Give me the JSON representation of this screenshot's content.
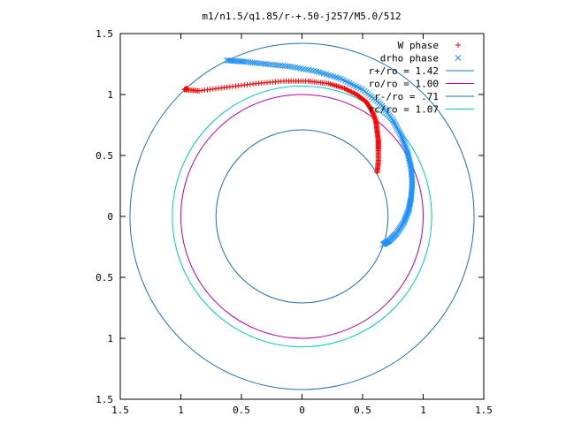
{
  "chart_data": {
    "type": "scatter",
    "title": "m1/n1.5/q1.85/r-+.50-j257/M5.0/512",
    "xlabel": "",
    "ylabel": "",
    "xlim": [
      -1.5,
      1.5
    ],
    "ylim": [
      -1.5,
      1.5
    ],
    "x_ticks": [
      -1.5,
      -1,
      -0.5,
      0,
      0.5,
      1,
      1.5
    ],
    "y_ticks": [
      -1.5,
      -1,
      -0.5,
      0,
      0.5,
      1,
      1.5
    ],
    "x_tick_labels": [
      "1.5",
      "1",
      "0.5",
      "0",
      "0.5",
      "1",
      "1.5"
    ],
    "y_tick_labels": [
      "1.5",
      "1",
      "0.5",
      "0",
      "0.5",
      "1",
      "1.5"
    ],
    "grid": false,
    "legend_position": "top-right",
    "series": [
      {
        "name": "W phase",
        "kind": "points",
        "marker": "plus",
        "color": "#ff0000",
        "x": [
          0.62,
          0.63,
          0.63,
          0.63,
          0.62,
          0.61,
          0.58,
          0.53,
          0.45,
          0.35,
          0.22,
          0.05,
          -0.15,
          -0.38,
          -0.62,
          -0.85,
          -0.97,
          -0.95
        ],
        "y": [
          0.36,
          0.45,
          0.55,
          0.62,
          0.7,
          0.78,
          0.86,
          0.94,
          1.0,
          1.05,
          1.09,
          1.11,
          1.11,
          1.09,
          1.06,
          1.03,
          1.04,
          1.05
        ]
      },
      {
        "name": "drho phase",
        "kind": "points",
        "marker": "cross",
        "color": "#1e90ff",
        "x": [
          0.67,
          0.72,
          0.78,
          0.84,
          0.88,
          0.9,
          0.91,
          0.9,
          0.87,
          0.82,
          0.75,
          0.65,
          0.5,
          0.32,
          0.12,
          -0.1,
          -0.3,
          -0.48,
          -0.62
        ],
        "y": [
          -0.23,
          -0.2,
          -0.14,
          -0.05,
          0.05,
          0.15,
          0.27,
          0.4,
          0.53,
          0.66,
          0.79,
          0.92,
          1.04,
          1.13,
          1.19,
          1.23,
          1.25,
          1.27,
          1.28
        ]
      },
      {
        "name": "r+/ro = 1.42",
        "kind": "circle",
        "radius": 1.42,
        "color": "#1e6fb0"
      },
      {
        "name": "ro/ro = 1.00",
        "kind": "circle",
        "radius": 1.0,
        "color": "#b000b0"
      },
      {
        "name": "r-/ro = .71",
        "kind": "circle",
        "radius": 0.71,
        "color": "#1e6fb0"
      },
      {
        "name": "rc/ro = 1.07",
        "kind": "circle",
        "radius": 1.07,
        "color": "#00c8c8"
      }
    ]
  }
}
